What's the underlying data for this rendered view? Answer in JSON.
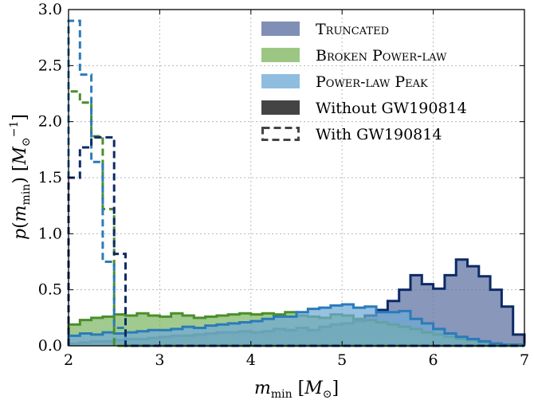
{
  "chart_data": {
    "type": "histogram",
    "xlabel": "m_min [M_⊙]",
    "ylabel": "p(m_min) [M_⊙^-1]",
    "xlim": [
      2,
      7
    ],
    "ylim": [
      0,
      3.0
    ],
    "x_ticks": [
      "2",
      "3",
      "4",
      "5",
      "6",
      "7"
    ],
    "y_ticks": [
      "0.0",
      "0.5",
      "1.0",
      "1.5",
      "2.0",
      "2.5",
      "3.0"
    ],
    "grid": true,
    "legend_position": "top-right",
    "bin_edges": [
      2.0,
      2.125,
      2.25,
      2.375,
      2.5,
      2.625,
      2.75,
      2.875,
      3.0,
      3.125,
      3.25,
      3.375,
      3.5,
      3.625,
      3.75,
      3.875,
      4.0,
      4.125,
      4.25,
      4.375,
      4.5,
      4.625,
      4.75,
      4.875,
      5.0,
      5.125,
      5.25,
      5.375,
      5.5,
      5.625,
      5.75,
      5.875,
      6.0,
      6.125,
      6.25,
      6.375,
      6.5,
      6.625,
      6.75,
      6.875,
      7.0
    ],
    "series": [
      {
        "name": "Truncated",
        "style": "filled",
        "color": "#5a6fa0",
        "edge_color": "#0c2a66",
        "values": [
          0.02,
          0.03,
          0.04,
          0.04,
          0.05,
          0.06,
          0.06,
          0.07,
          0.08,
          0.09,
          0.09,
          0.1,
          0.11,
          0.12,
          0.12,
          0.13,
          0.12,
          0.13,
          0.15,
          0.14,
          0.16,
          0.14,
          0.17,
          0.19,
          0.2,
          0.22,
          0.27,
          0.32,
          0.4,
          0.5,
          0.63,
          0.55,
          0.51,
          0.63,
          0.77,
          0.71,
          0.62,
          0.5,
          0.35,
          0.1
        ]
      },
      {
        "name": "Broken Power-law",
        "style": "filled",
        "color": "#7db563",
        "edge_color": "#4a8f2a",
        "values": [
          0.19,
          0.23,
          0.25,
          0.26,
          0.28,
          0.27,
          0.29,
          0.27,
          0.26,
          0.29,
          0.27,
          0.25,
          0.26,
          0.27,
          0.28,
          0.29,
          0.28,
          0.29,
          0.28,
          0.3,
          0.27,
          0.26,
          0.25,
          0.28,
          0.27,
          0.24,
          0.23,
          0.21,
          0.19,
          0.17,
          0.15,
          0.12,
          0.1,
          0.08,
          0.06,
          0.05,
          0.03,
          0.02,
          0.01,
          0.01
        ]
      },
      {
        "name": "Power-law Peak",
        "style": "filled",
        "color": "#6da9d6",
        "edge_color": "#2b7bb9",
        "values": [
          0.09,
          0.11,
          0.1,
          0.12,
          0.11,
          0.12,
          0.13,
          0.14,
          0.14,
          0.15,
          0.17,
          0.16,
          0.18,
          0.19,
          0.2,
          0.21,
          0.22,
          0.24,
          0.26,
          0.26,
          0.3,
          0.33,
          0.34,
          0.36,
          0.37,
          0.34,
          0.35,
          0.3,
          0.3,
          0.31,
          0.24,
          0.2,
          0.15,
          0.11,
          0.08,
          0.06,
          0.04,
          0.02,
          0.01,
          0.01
        ]
      },
      {
        "name": "Broken Power-law With GW190814",
        "style": "dashed",
        "color": "#4a8f2a",
        "values": [
          2.27,
          2.17,
          1.87,
          1.22,
          0.0,
          0.0,
          0.0,
          0.0,
          0.0,
          0.0,
          0.0,
          0.0,
          0.0,
          0.0,
          0.0,
          0.0,
          0.0,
          0.0,
          0.0,
          0.0,
          0.0,
          0.0,
          0.0,
          0.0,
          0.0,
          0.0,
          0.0,
          0.0,
          0.0,
          0.0,
          0.0,
          0.0,
          0.0,
          0.0,
          0.0,
          0.0,
          0.0,
          0.0,
          0.0,
          0.0
        ]
      },
      {
        "name": "Power-law Peak With GW190814",
        "style": "dashed",
        "color": "#2b7bb9",
        "values": [
          2.9,
          2.42,
          1.64,
          0.75,
          0.16,
          0.0,
          0.0,
          0.0,
          0.0,
          0.0,
          0.0,
          0.0,
          0.0,
          0.0,
          0.0,
          0.0,
          0.0,
          0.0,
          0.0,
          0.0,
          0.0,
          0.0,
          0.0,
          0.0,
          0.0,
          0.0,
          0.0,
          0.0,
          0.0,
          0.0,
          0.0,
          0.0,
          0.0,
          0.0,
          0.0,
          0.0,
          0.0,
          0.0,
          0.0,
          0.0
        ]
      },
      {
        "name": "Truncated With GW190814",
        "style": "dashed",
        "color": "#0c2a66",
        "values": [
          1.5,
          1.77,
          1.86,
          1.86,
          0.82,
          0.0,
          0.0,
          0.0,
          0.0,
          0.0,
          0.0,
          0.0,
          0.0,
          0.0,
          0.0,
          0.0,
          0.0,
          0.0,
          0.0,
          0.0,
          0.0,
          0.0,
          0.0,
          0.0,
          0.0,
          0.0,
          0.0,
          0.0,
          0.0,
          0.0,
          0.0,
          0.0,
          0.0,
          0.0,
          0.0,
          0.0,
          0.0,
          0.0,
          0.0,
          0.0
        ]
      }
    ],
    "legend": [
      {
        "label": "Truncated",
        "kind": "patch",
        "color": "#7f8fb5"
      },
      {
        "label": "Broken Power-law",
        "kind": "patch",
        "color": "#9cc783"
      },
      {
        "label": "Power-law Peak",
        "kind": "patch",
        "color": "#8fbde0"
      },
      {
        "label": "Without GW190814",
        "kind": "solid",
        "color": "#444444"
      },
      {
        "label": "With GW190814",
        "kind": "dashed",
        "color": "#444444"
      }
    ]
  }
}
